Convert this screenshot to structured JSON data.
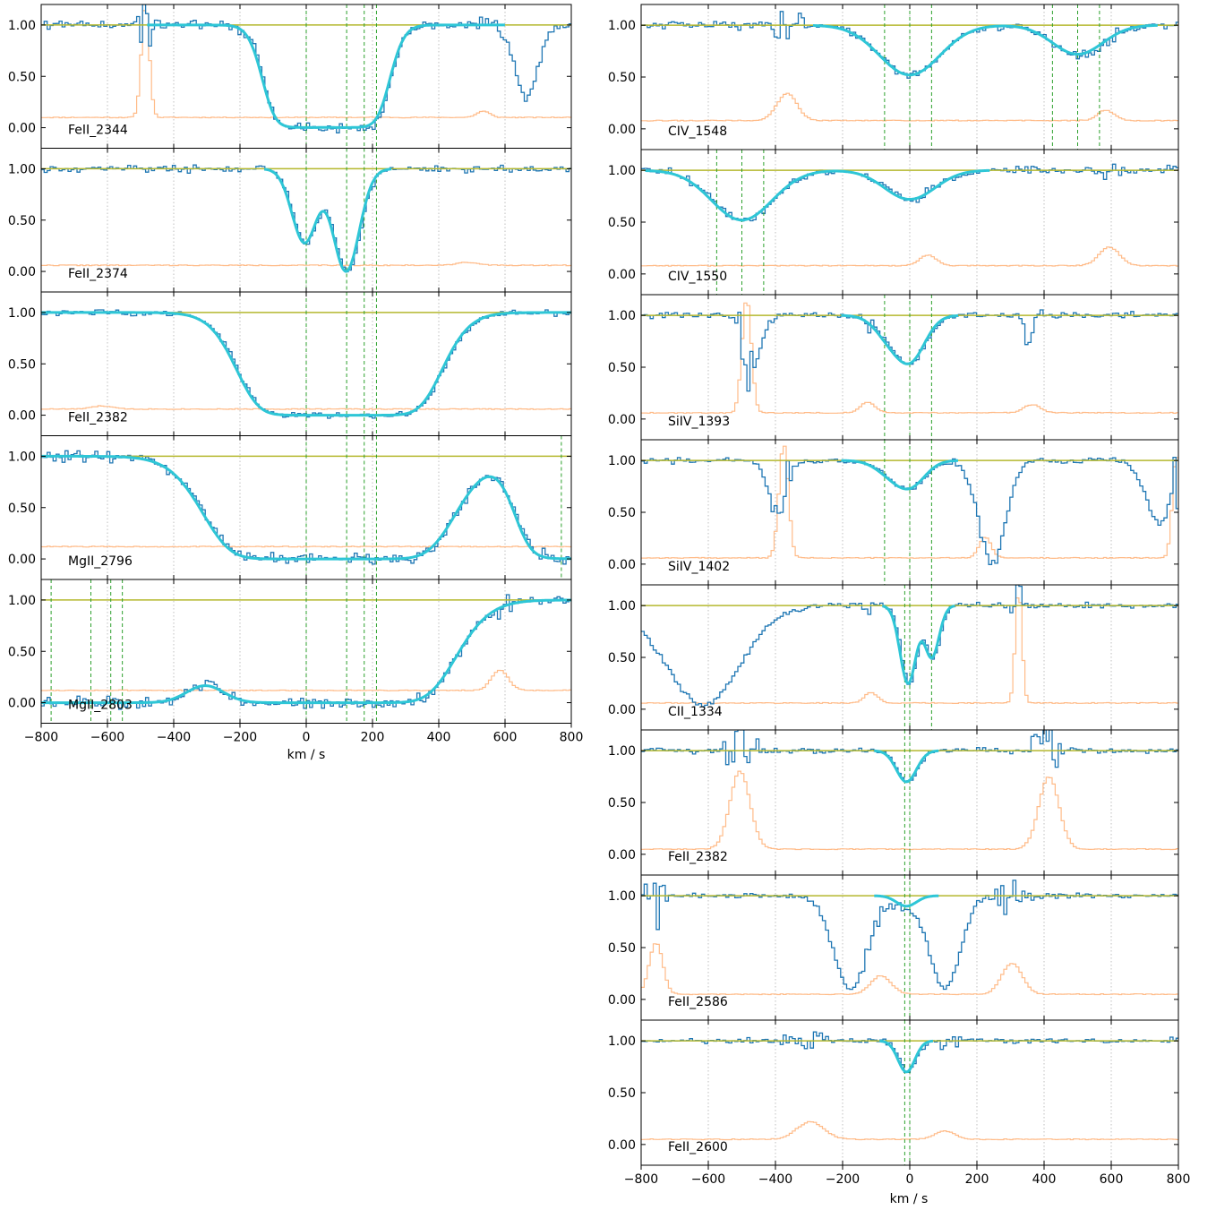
{
  "figure": {
    "xlabel": "km / s",
    "x_tick_labels": [
      "−800",
      "−600",
      "−400",
      "−200",
      "0",
      "200",
      "400",
      "600",
      "800"
    ],
    "y_tick_labels": [
      "0.00",
      "0.50",
      "1.00"
    ],
    "colors": {
      "flux": "#1f77b4",
      "error": "#ffbb88",
      "model": "#2ec6d6",
      "continuum": "#b5b82e",
      "component_marker": "#2ca02c",
      "grid": "#b0b0b0"
    }
  },
  "chart_data": [
    {
      "type": "line",
      "column": "left",
      "label": "FeII_2344",
      "xlim": [
        -800,
        800
      ],
      "ylim": [
        -0.2,
        1.2
      ],
      "vgrid": true,
      "components": [
        0,
        122,
        175,
        212
      ],
      "absorption": [
        {
          "center": -10,
          "width": 60,
          "depth": 1.0,
          "sat": 6
        },
        {
          "center": 130,
          "width": 60,
          "depth": 1.0,
          "sat": 6
        }
      ],
      "data_absorption": [
        {
          "center": 660,
          "width": 35,
          "depth": 0.7
        }
      ],
      "error": {
        "base": 0.1,
        "bumps": [
          {
            "center": -490,
            "width": 12,
            "height": 1.1
          },
          {
            "center": 530,
            "width": 20,
            "height": 0.06
          }
        ]
      },
      "seed": 11
    },
    {
      "type": "line",
      "column": "left",
      "label": "FeII_2374",
      "xlim": [
        -800,
        800
      ],
      "ylim": [
        -0.2,
        1.2
      ],
      "vgrid": true,
      "components": [
        0,
        122,
        175,
        212
      ],
      "absorption": [
        {
          "center": -5,
          "width": 38,
          "depth": 0.72,
          "sat": 1
        },
        {
          "center": 120,
          "width": 40,
          "depth": 1.0,
          "sat": 1.2
        }
      ],
      "data_absorption": [],
      "error": {
        "base": 0.06,
        "bumps": [
          {
            "center": 480,
            "width": 30,
            "height": 0.03
          }
        ]
      },
      "seed": 22
    },
    {
      "type": "line",
      "column": "left",
      "label": "FeII_2382",
      "xlim": [
        -800,
        800
      ],
      "ylim": [
        -0.2,
        1.2
      ],
      "vgrid": true,
      "components": [
        0,
        122,
        175,
        212
      ],
      "absorption": [
        {
          "center": 100,
          "width": 130,
          "depth": 1.0,
          "sat": 14
        }
      ],
      "data_absorption": [],
      "error": {
        "base": 0.06,
        "bumps": [
          {
            "center": -620,
            "width": 30,
            "height": 0.03
          }
        ]
      },
      "seed": 33
    },
    {
      "type": "line",
      "column": "left",
      "label": "MgII_2796",
      "xlim": [
        -800,
        800
      ],
      "ylim": [
        -0.2,
        1.2
      ],
      "vgrid": true,
      "components": [
        0,
        122,
        175,
        212,
        770
      ],
      "absorption": [
        {
          "center": 70,
          "width": 160,
          "depth": 1.0,
          "sat": 14
        },
        {
          "center": 790,
          "width": 80,
          "depth": 1.0,
          "sat": 6
        }
      ],
      "data_absorption": [],
      "error": {
        "base": 0.12,
        "bumps": []
      },
      "seed": 44
    },
    {
      "type": "line",
      "column": "left",
      "label": "MgII_2803",
      "xlim": [
        -800,
        800
      ],
      "ylim": [
        -0.2,
        1.2
      ],
      "vgrid": true,
      "components": [
        -770,
        -650,
        -590,
        -555,
        0,
        122,
        175,
        212
      ],
      "absorption": [
        {
          "center": -680,
          "width": 160,
          "depth": 1.0,
          "sat": 14
        },
        {
          "center": 70,
          "width": 160,
          "depth": 1.0,
          "sat": 14
        }
      ],
      "data_absorption": [],
      "error": {
        "base": 0.12,
        "bumps": [
          {
            "center": 580,
            "width": 25,
            "height": 0.2
          }
        ]
      },
      "seed": 55
    },
    {
      "type": "line",
      "column": "right",
      "label": "CIV_1548",
      "xlim": [
        -800,
        800
      ],
      "ylim": [
        -0.2,
        1.2
      ],
      "vgrid": true,
      "components": [
        -75,
        0,
        65,
        425,
        500,
        565
      ],
      "absorption": [
        {
          "center": 0,
          "width": 90,
          "depth": 0.48,
          "sat": 1
        },
        {
          "center": 500,
          "width": 75,
          "depth": 0.28,
          "sat": 1
        }
      ],
      "data_absorption": [],
      "error": {
        "base": 0.08,
        "bumps": [
          {
            "center": -370,
            "width": 30,
            "height": 0.26
          },
          {
            "center": 580,
            "width": 25,
            "height": 0.1
          }
        ]
      },
      "seed": 66
    },
    {
      "type": "line",
      "column": "right",
      "label": "CIV_1550",
      "xlim": [
        -800,
        800
      ],
      "ylim": [
        -0.2,
        1.2
      ],
      "vgrid": true,
      "components": [
        -575,
        -500,
        -435
      ],
      "absorption": [
        {
          "center": -500,
          "width": 90,
          "depth": 0.48,
          "sat": 1
        },
        {
          "center": 0,
          "width": 75,
          "depth": 0.28,
          "sat": 1
        }
      ],
      "data_absorption": [],
      "error": {
        "base": 0.08,
        "bumps": [
          {
            "center": 50,
            "width": 25,
            "height": 0.1
          },
          {
            "center": 590,
            "width": 30,
            "height": 0.18
          }
        ]
      },
      "seed": 77
    },
    {
      "type": "line",
      "column": "right",
      "label": "SiIV_1393",
      "xlim": [
        -800,
        800
      ],
      "ylim": [
        -0.2,
        1.2
      ],
      "vgrid": true,
      "components": [
        -75,
        0,
        65
      ],
      "absorption": [
        {
          "center": -60,
          "width": 45,
          "depth": 0.18,
          "sat": 1
        },
        {
          "center": 0,
          "width": 45,
          "depth": 0.42,
          "sat": 1
        }
      ],
      "data_absorption": [
        {
          "center": -470,
          "width": 25,
          "depth": 0.45
        },
        {
          "center": 350,
          "width": 12,
          "depth": 0.25
        }
      ],
      "error": {
        "base": 0.06,
        "bumps": [
          {
            "center": -490,
            "width": 14,
            "height": 1.1
          },
          {
            "center": -130,
            "width": 22,
            "height": 0.1
          },
          {
            "center": 360,
            "width": 25,
            "height": 0.08
          }
        ]
      },
      "seed": 88
    },
    {
      "type": "line",
      "column": "right",
      "label": "SiIV_1402",
      "xlim": [
        -800,
        800
      ],
      "ylim": [
        -0.2,
        1.2
      ],
      "vgrid": true,
      "components": [
        -75,
        0,
        65
      ],
      "absorption": [
        {
          "center": -60,
          "width": 45,
          "depth": 0.1,
          "sat": 1
        },
        {
          "center": 0,
          "width": 45,
          "depth": 0.24,
          "sat": 1
        }
      ],
      "data_absorption": [
        {
          "center": -400,
          "width": 25,
          "depth": 0.5
        },
        {
          "center": 240,
          "width": 40,
          "depth": 1.0
        },
        {
          "center": 740,
          "width": 40,
          "depth": 0.6
        }
      ],
      "error": {
        "base": 0.06,
        "bumps": [
          {
            "center": -380,
            "width": 14,
            "height": 1.1
          },
          {
            "center": 220,
            "width": 18,
            "height": 0.2
          },
          {
            "center": 790,
            "width": 12,
            "height": 1.0
          }
        ]
      },
      "seed": 99
    },
    {
      "type": "line",
      "column": "right",
      "label": "CII_1334",
      "xlim": [
        -800,
        800
      ],
      "ylim": [
        -0.2,
        1.2
      ],
      "vgrid": true,
      "components": [
        -15,
        0,
        65
      ],
      "absorption": [
        {
          "center": -5,
          "width": 24,
          "depth": 0.75,
          "sat": 1
        },
        {
          "center": 65,
          "width": 22,
          "depth": 0.5,
          "sat": 1
        }
      ],
      "data_absorption": [
        {
          "center": -620,
          "width": 110,
          "depth": 0.95
        }
      ],
      "error": {
        "base": 0.06,
        "bumps": [
          {
            "center": -120,
            "width": 20,
            "height": 0.1
          },
          {
            "center": 320,
            "width": 10,
            "height": 1.1
          }
        ]
      },
      "seed": 111
    },
    {
      "type": "line",
      "column": "right",
      "label": "FeII_2382",
      "xlim": [
        -800,
        800
      ],
      "ylim": [
        -0.2,
        1.2
      ],
      "vgrid": true,
      "components": [
        -15,
        0
      ],
      "absorption": [
        {
          "center": -10,
          "width": 30,
          "depth": 0.3,
          "sat": 1
        }
      ],
      "data_absorption": [],
      "error": {
        "base": 0.05,
        "bumps": [
          {
            "center": -510,
            "width": 30,
            "height": 0.75
          },
          {
            "center": 410,
            "width": 30,
            "height": 0.7
          }
        ]
      },
      "seed": 122
    },
    {
      "type": "line",
      "column": "right",
      "label": "FeII_2586",
      "xlim": [
        -800,
        800
      ],
      "ylim": [
        -0.2,
        1.2
      ],
      "vgrid": true,
      "components": [
        -15,
        0
      ],
      "absorption": [
        {
          "center": -10,
          "width": 30,
          "depth": 0.1,
          "sat": 1
        }
      ],
      "data_absorption": [
        {
          "center": -180,
          "width": 50,
          "depth": 0.9
        },
        {
          "center": 100,
          "width": 45,
          "depth": 0.9
        }
      ],
      "error": {
        "base": 0.05,
        "bumps": [
          {
            "center": -760,
            "width": 20,
            "height": 0.5
          },
          {
            "center": -90,
            "width": 30,
            "height": 0.18
          },
          {
            "center": 300,
            "width": 30,
            "height": 0.3
          }
        ]
      },
      "seed": 133
    },
    {
      "type": "line",
      "column": "right",
      "label": "FeII_2600",
      "xlim": [
        -800,
        800
      ],
      "ylim": [
        -0.2,
        1.2
      ],
      "vgrid": true,
      "components": [
        -15,
        0
      ],
      "absorption": [
        {
          "center": -10,
          "width": 25,
          "depth": 0.3,
          "sat": 1
        }
      ],
      "data_absorption": [],
      "error": {
        "base": 0.05,
        "bumps": [
          {
            "center": -300,
            "width": 40,
            "height": 0.17
          },
          {
            "center": 100,
            "width": 30,
            "height": 0.08
          }
        ]
      },
      "seed": 144
    }
  ]
}
